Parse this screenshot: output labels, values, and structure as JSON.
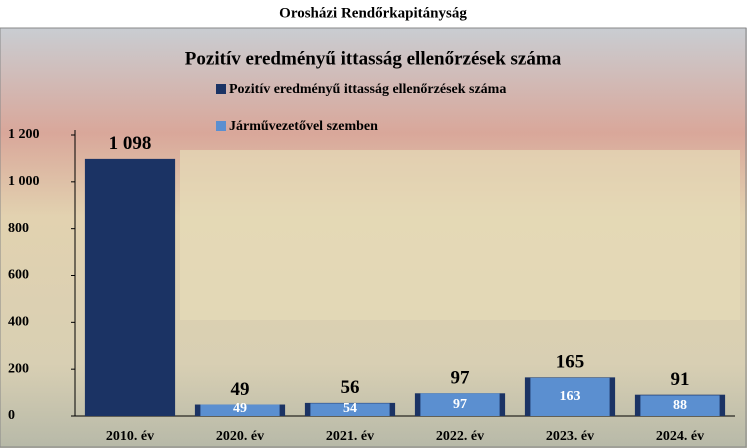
{
  "page_title": "Orosházi Rendőrkapitányság",
  "chart_data": {
    "type": "bar",
    "title": "Pozitív eredményű ittasság ellenőrzések száma",
    "categories": [
      "2010. év",
      "2020. év",
      "2021. év",
      "2022. év",
      "2023. év",
      "2024. év"
    ],
    "series": [
      {
        "name": "Pozitív eredményű ittasság ellenőrzések száma",
        "color": "#1b3364",
        "values": [
          1098,
          49,
          56,
          97,
          165,
          91
        ],
        "value_labels": [
          "1 098",
          "49",
          "56",
          "97",
          "165",
          "91"
        ]
      },
      {
        "name": "Járművezetővel szemben",
        "color": "#5b8fd0",
        "values": [
          null,
          49,
          54,
          97,
          163,
          88
        ]
      }
    ],
    "ylim": [
      0,
      1200
    ],
    "yticks": [
      0,
      200,
      400,
      600,
      800,
      {
        "value": 1000,
        "label": "1 000"
      },
      {
        "value": 1200,
        "label": "1 200"
      }
    ],
    "grid": false
  }
}
